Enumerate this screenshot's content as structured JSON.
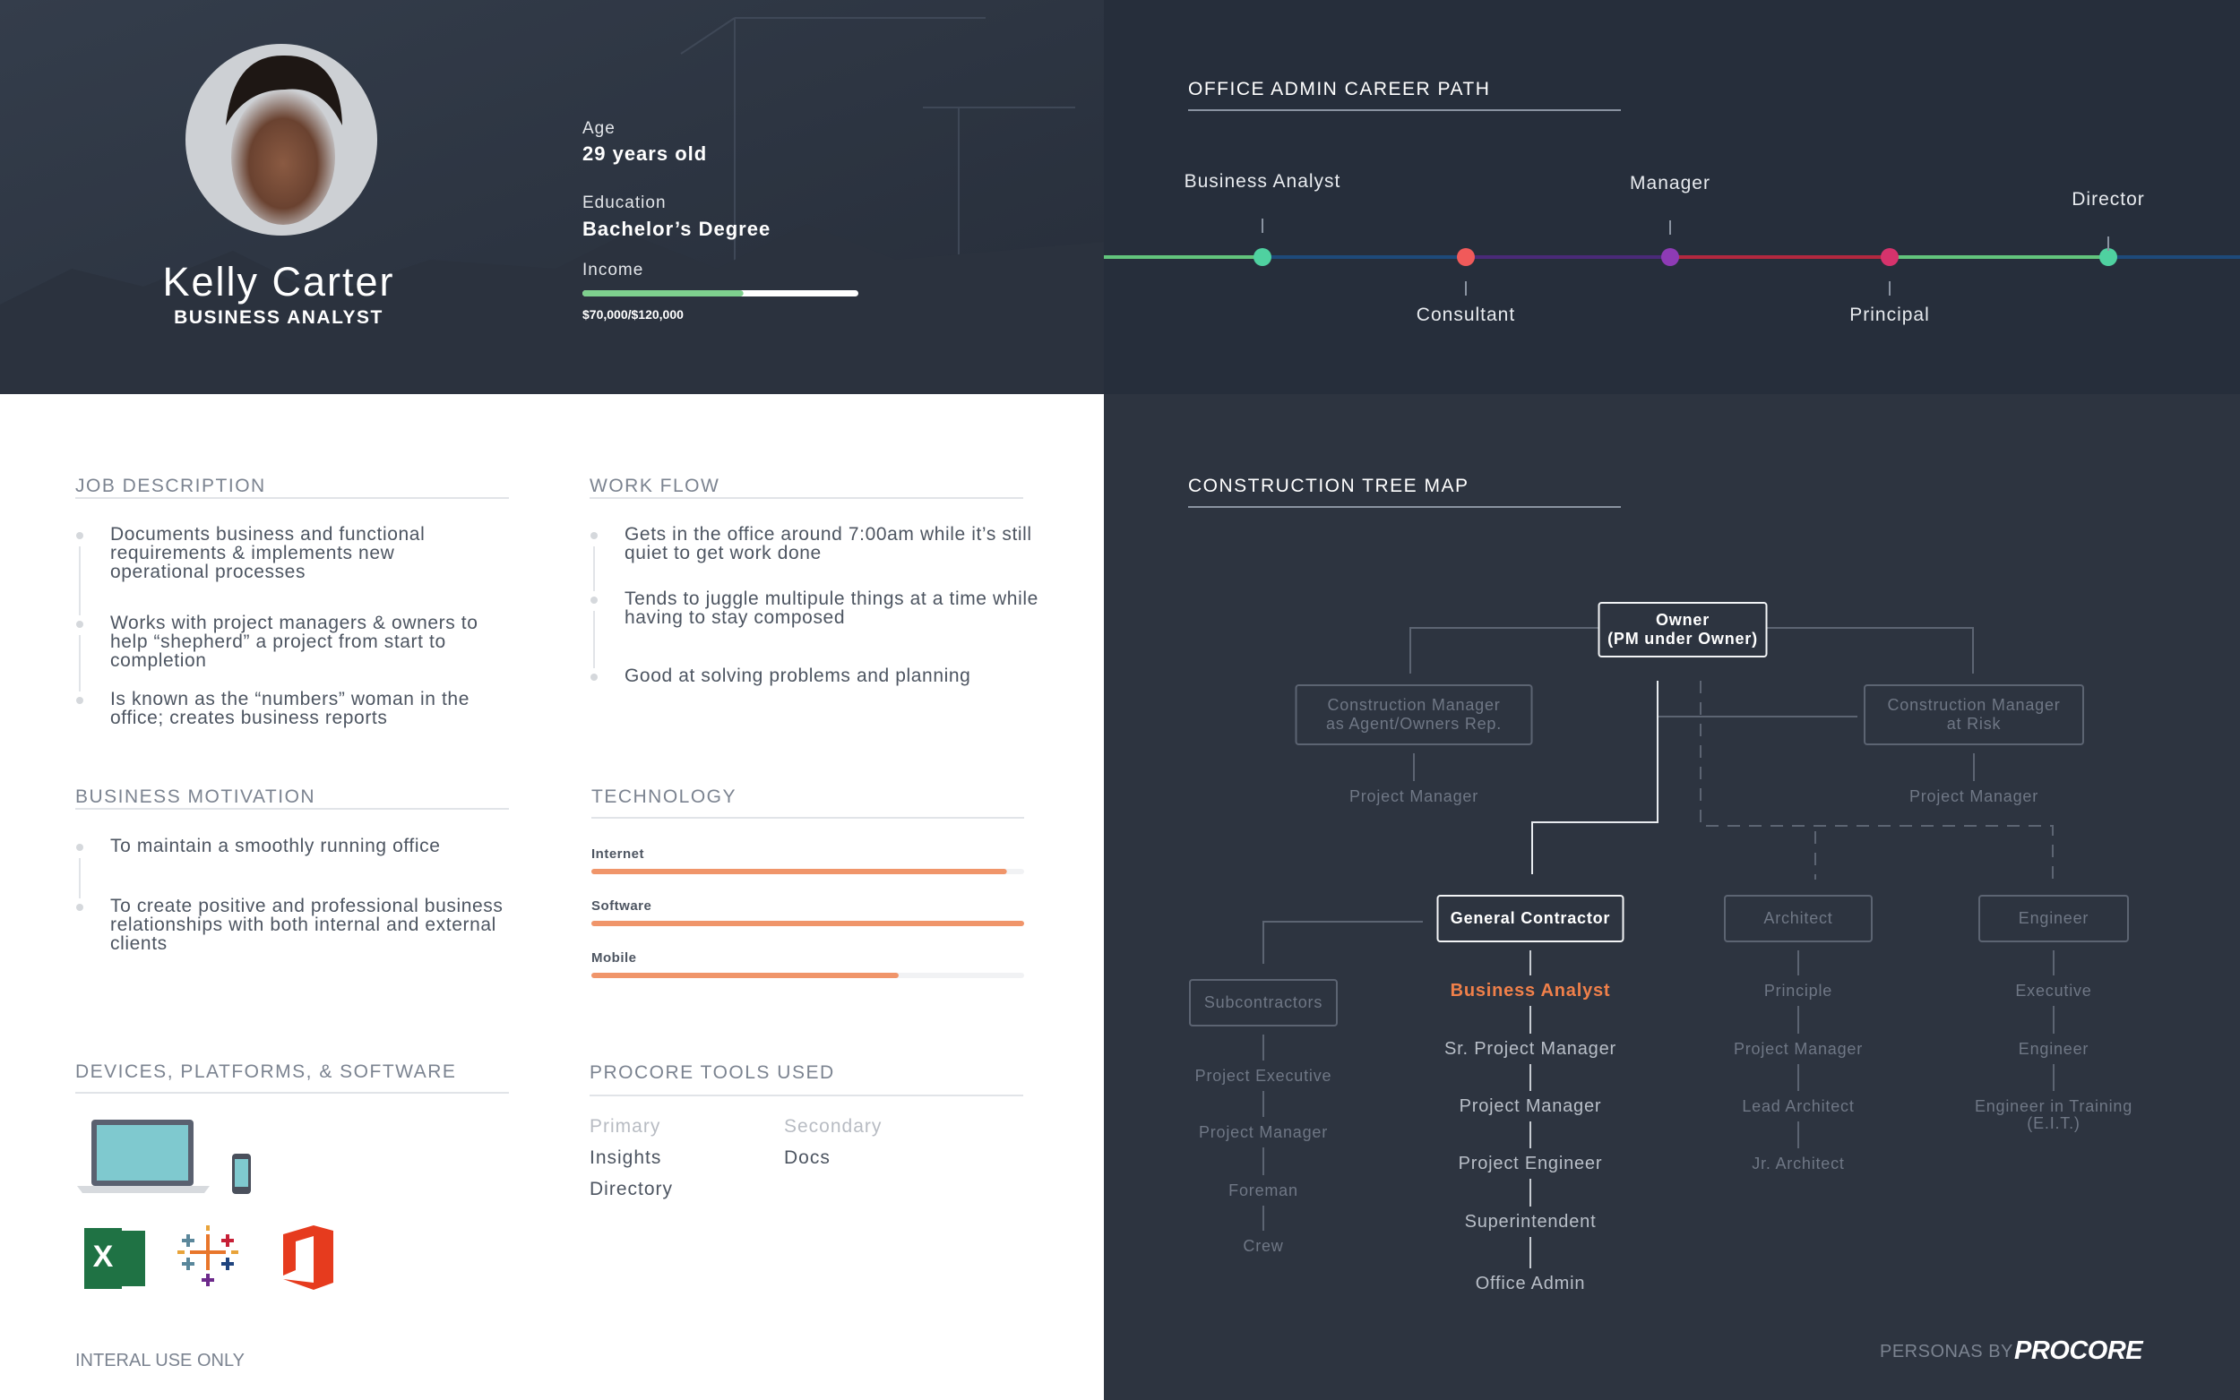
{
  "profile": {
    "name": "Kelly Carter",
    "role": "BUSINESS ANALYST",
    "age_label": "Age",
    "age": "29 years old",
    "education_label": "Education",
    "education": "Bachelor’s Degree",
    "income_label": "Income",
    "income": {
      "value": 70000,
      "max": 120000,
      "label": "$70,000/$120,000"
    }
  },
  "career_path": {
    "title": "OFFICE ADMIN CAREER PATH",
    "steps": [
      "Business Analyst",
      "Consultant",
      "Manager",
      "Principal",
      "Director"
    ]
  },
  "job_description": {
    "title": "JOB DESCRIPTION",
    "items": [
      "Documents business and functional requirements & implements new operational processes",
      "Works with project managers & owners to help “shepherd” a project from start to completion",
      "Is known as the “numbers” woman in the office; creates business reports"
    ]
  },
  "work_flow": {
    "title": "WORK FLOW",
    "items": [
      "Gets in the office around 7:00am while it’s still quiet to get work done",
      "Tends to juggle multipule things at a time while having to stay composed",
      "Good at solving problems and planning"
    ]
  },
  "business_motivation": {
    "title": "BUSINESS MOTIVATION",
    "items": [
      "To maintain a smoothly running office",
      "To create positive and professional business relationships with both internal and external clients"
    ]
  },
  "technology": {
    "title": "TECHNOLOGY",
    "items": [
      {
        "name": "Internet",
        "value": 96
      },
      {
        "name": "Software",
        "value": 100
      },
      {
        "name": "Mobile",
        "value": 71
      }
    ]
  },
  "devices": {
    "title": "DEVICES, PLATFORMS, & SOFTWARE"
  },
  "procore_tools": {
    "title": "PROCORE TOOLS USED",
    "primary_label": "Primary",
    "primary": [
      "Insights",
      "Directory"
    ],
    "secondary_label": "Secondary",
    "secondary": [
      "Docs"
    ]
  },
  "tree_map": {
    "title": "CONSTRUCTION TREE MAP",
    "groups": [
      {
        "box": [
          "Owner",
          "(PM under Owner)"
        ],
        "roles": []
      },
      {
        "box": [
          "Construction Manager",
          "as Agent/Owners Rep."
        ],
        "roles": [
          "Project Manager"
        ]
      },
      {
        "box": [
          "Construction Manager",
          "at Risk"
        ],
        "roles": [
          "Project Manager"
        ]
      },
      {
        "box": [
          "General Contractor"
        ],
        "roles": [
          "Business Analyst",
          "Sr. Project Manager",
          "Project Manager",
          "Project Engineer",
          "Superintendent",
          "Office Admin"
        ]
      },
      {
        "box": [
          "Architect"
        ],
        "roles": [
          "Principle",
          "Project Manager",
          "Lead Architect",
          "Jr. Architect"
        ]
      },
      {
        "box": [
          "Engineer"
        ],
        "roles": [
          "Executive",
          "Engineer",
          "Engineer in Training (E.I.T.)"
        ]
      },
      {
        "box": [
          "Subcontractors"
        ],
        "roles": [
          "Project Executive",
          "Project Manager",
          "Foreman",
          "Crew"
        ]
      }
    ]
  },
  "footer": {
    "left": "INTERAL USE ONLY",
    "credit": "PERSONAS BY",
    "brand": "PROCORE"
  }
}
